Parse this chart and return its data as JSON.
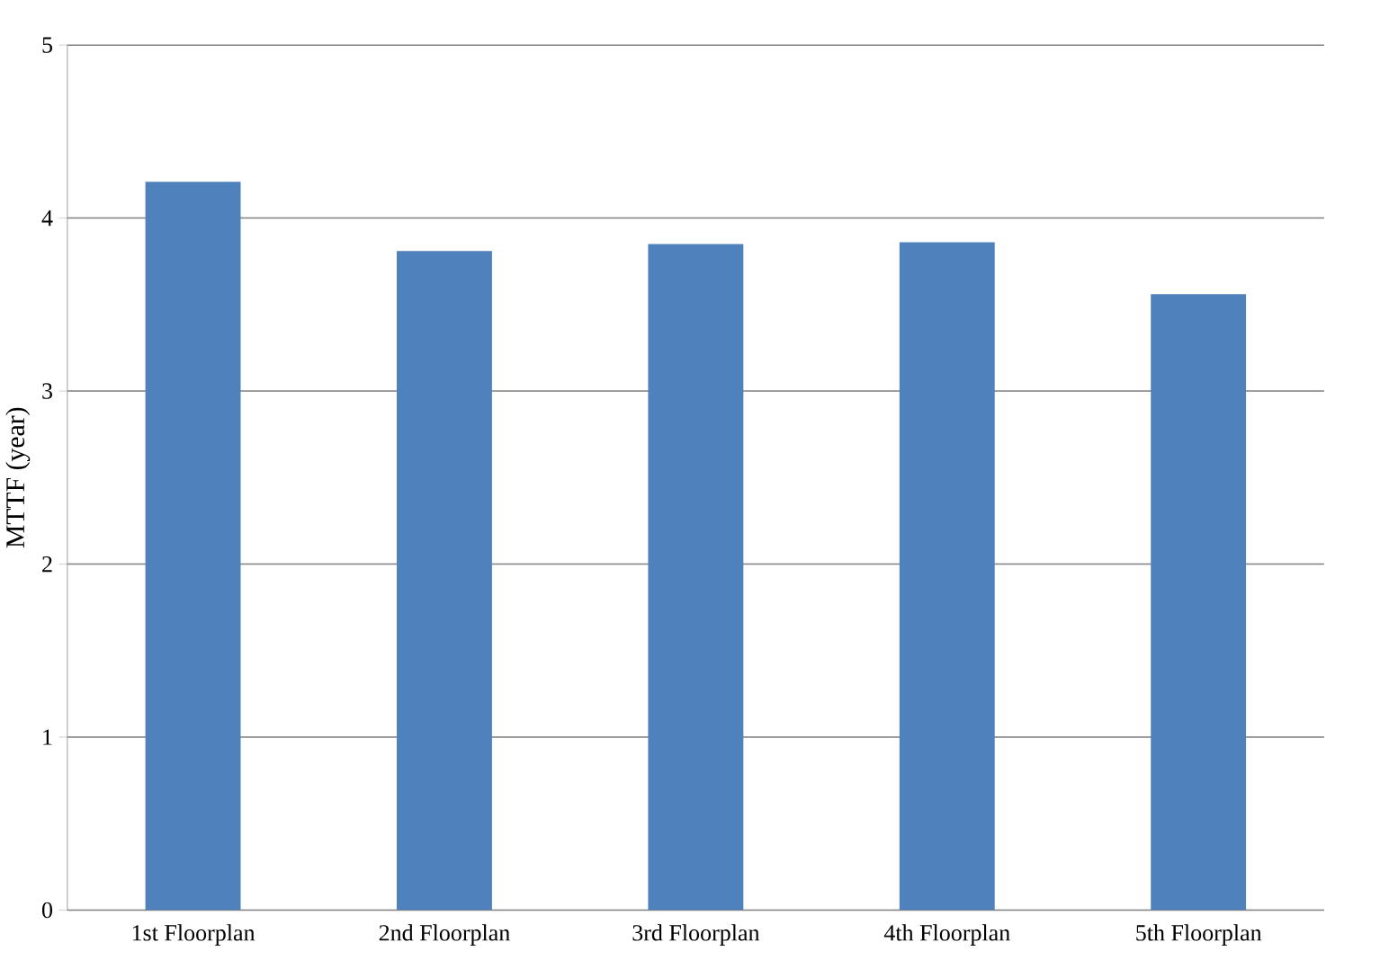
{
  "chart_data": {
    "type": "bar",
    "ylabel": "MTTF (year)",
    "categories": [
      "1st Floorplan",
      "2nd Floorplan",
      "3rd Floorplan",
      "4th Floorplan",
      "5th Floorplan"
    ],
    "values": [
      4.21,
      3.81,
      3.85,
      3.86,
      3.56
    ],
    "color": "#4f81bd",
    "ylim": [
      0,
      5
    ],
    "yticks": [
      0,
      1,
      2,
      3,
      4,
      5
    ],
    "grid": "y"
  }
}
